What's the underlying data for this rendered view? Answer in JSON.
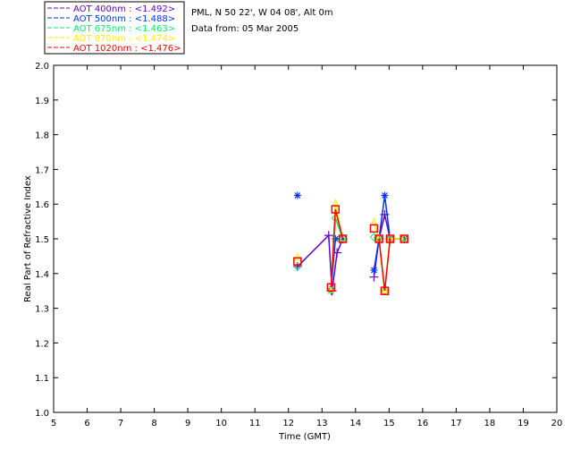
{
  "chart_data": {
    "type": "line",
    "title_lines": [
      "PML, N 50 22', W 04 08', Alt 0m",
      "Data from: 05 Mar 2005"
    ],
    "xlabel": "Time (GMT)",
    "ylabel": "Real Part of Refractive Index",
    "xlim": [
      5,
      20
    ],
    "ylim": [
      1.0,
      2.0
    ],
    "xticks": [
      5,
      6,
      7,
      8,
      9,
      10,
      11,
      12,
      13,
      14,
      15,
      16,
      17,
      18,
      19,
      20
    ],
    "yticks": [
      "1.0",
      "1.1",
      "1.2",
      "1.3",
      "1.4",
      "1.5",
      "1.6",
      "1.7",
      "1.8",
      "1.9",
      "2.0"
    ],
    "legend_position": "top-left-outside",
    "series": [
      {
        "name": "AOT  400nm : <1.492>",
        "color": "#6600cc",
        "marker": "plus",
        "points": [
          [
            12.27,
            1.42
          ],
          [
            13.2,
            1.51
          ],
          [
            13.3,
            1.35
          ],
          [
            13.45,
            1.46
          ],
          [
            13.62,
            1.5
          ],
          null,
          [
            14.55,
            1.39
          ],
          [
            14.7,
            1.5
          ],
          [
            14.87,
            1.57
          ],
          [
            15.03,
            1.5
          ],
          [
            15.45,
            1.5
          ]
        ]
      },
      {
        "name": "AOT  500nm : <1.488>",
        "color": "#0033ff",
        "marker": "asterisk",
        "points": [
          [
            12.27,
            1.625
          ],
          null,
          [
            13.27,
            1.35
          ],
          [
            13.4,
            1.5
          ],
          [
            13.62,
            1.5
          ],
          null,
          [
            14.55,
            1.41
          ],
          [
            14.7,
            1.5
          ],
          [
            14.87,
            1.625
          ],
          [
            15.03,
            1.5
          ],
          [
            15.45,
            1.5
          ]
        ]
      },
      {
        "name": "AOT  675nm : <1.463>",
        "color": "#00ee66",
        "marker": "diamond",
        "points": [
          [
            12.27,
            1.42
          ],
          null,
          [
            13.27,
            1.355
          ],
          [
            13.4,
            1.56
          ],
          [
            13.62,
            1.5
          ],
          null,
          [
            14.55,
            1.505
          ],
          [
            14.7,
            1.5
          ],
          [
            14.87,
            1.35
          ],
          [
            15.03,
            1.5
          ],
          [
            15.45,
            1.5
          ]
        ]
      },
      {
        "name": "AOT  870nm : <1.474>",
        "color": "#ffee00",
        "marker": "triangle",
        "points": [
          [
            12.27,
            1.445
          ],
          null,
          [
            13.27,
            1.35
          ],
          [
            13.4,
            1.6
          ],
          [
            13.62,
            1.5
          ],
          null,
          [
            14.55,
            1.545
          ],
          [
            14.7,
            1.5
          ],
          [
            14.87,
            1.35
          ],
          [
            15.03,
            1.5
          ],
          [
            15.45,
            1.5
          ]
        ]
      },
      {
        "name": "AOT 1020nm : <1.476>",
        "color": "#ff0000",
        "marker": "square",
        "points": [
          [
            12.27,
            1.435
          ],
          null,
          [
            13.27,
            1.36
          ],
          [
            13.4,
            1.585
          ],
          [
            13.62,
            1.5
          ],
          null,
          [
            14.55,
            1.53
          ],
          null,
          [
            14.7,
            1.5
          ],
          [
            14.87,
            1.35
          ],
          [
            15.03,
            1.5
          ],
          null,
          [
            15.45,
            1.5
          ]
        ]
      }
    ]
  }
}
